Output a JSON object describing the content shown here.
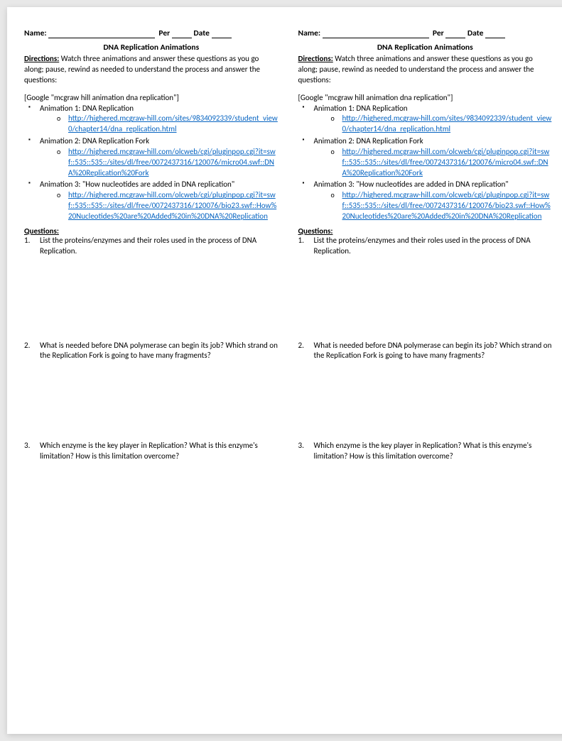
{
  "header": {
    "name_label": "Name:",
    "per_label": "Per",
    "date_label": "Date"
  },
  "title": "DNA Replication Animations",
  "directions": {
    "label": "Directions:",
    "text": " Watch three animations and answer these questions as you go along; pause, rewind as needed to understand the process and answer the questions:"
  },
  "google_note": "[Google \"mcgraw hill animation dna replication\"]",
  "animations": [
    {
      "title": "Animation 1: DNA Replication",
      "url": "http://highered.mcgraw-hill.com/sites/9834092339/student_view0/chapter14/dna_replication.html"
    },
    {
      "title": "Animation 2: DNA Replication Fork",
      "url": "http://highered.mcgraw-hill.com/olcweb/cgi/pluginpop.cgi?it=swf::535::535::/sites/dl/free/0072437316/120076/micro04.swf::DNA%20Replication%20Fork"
    },
    {
      "title": "Animation 3: \"How nucleotides are added in DNA replication\"",
      "url": "http://highered.mcgraw-hill.com/olcweb/cgi/pluginpop.cgi?it=swf::535::535::/sites/dl/free/0072437316/120076/bio23.swf::How%20Nucleotides%20are%20Added%20in%20DNA%20Replication"
    }
  ],
  "questions_label": "Questions:",
  "questions": [
    {
      "num": "1.",
      "text": "List the proteins/enzymes and their roles used in the process of DNA Replication."
    },
    {
      "num": "2.",
      "text": "What is needed before DNA polymerase can begin its job?  Which strand on the Replication Fork is going to have many fragments?"
    },
    {
      "num": "3.",
      "text": "Which enzyme is the key player in Replication? What is this enzyme's limitation? How is this limitation overcome?"
    }
  ]
}
